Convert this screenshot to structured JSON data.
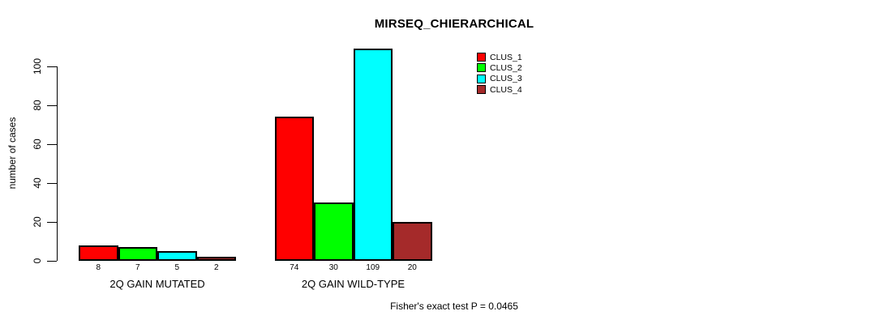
{
  "chart_data": {
    "type": "bar",
    "title": "MIRSEQ_CHIERARCHICAL",
    "ylabel": "number of cases",
    "xlabel": "",
    "categories": [
      "2Q GAIN MUTATED",
      "2Q GAIN WILD-TYPE"
    ],
    "series": [
      {
        "name": "CLUS_1",
        "color": "#FF0000",
        "values": [
          8,
          74
        ]
      },
      {
        "name": "CLUS_2",
        "color": "#00FF00",
        "values": [
          7,
          30
        ]
      },
      {
        "name": "CLUS_3",
        "color": "#00FFFF",
        "values": [
          5,
          109
        ]
      },
      {
        "name": "CLUS_4",
        "color": "#A52A2A",
        "values": [
          2,
          20
        ]
      }
    ],
    "yticks": [
      0,
      20,
      40,
      60,
      80,
      100
    ],
    "ylim": [
      0,
      109
    ],
    "grid": false,
    "legend_position": "top-right",
    "value_labels_shown": true,
    "annotation": "Fisher's exact test P = 0.0465"
  }
}
